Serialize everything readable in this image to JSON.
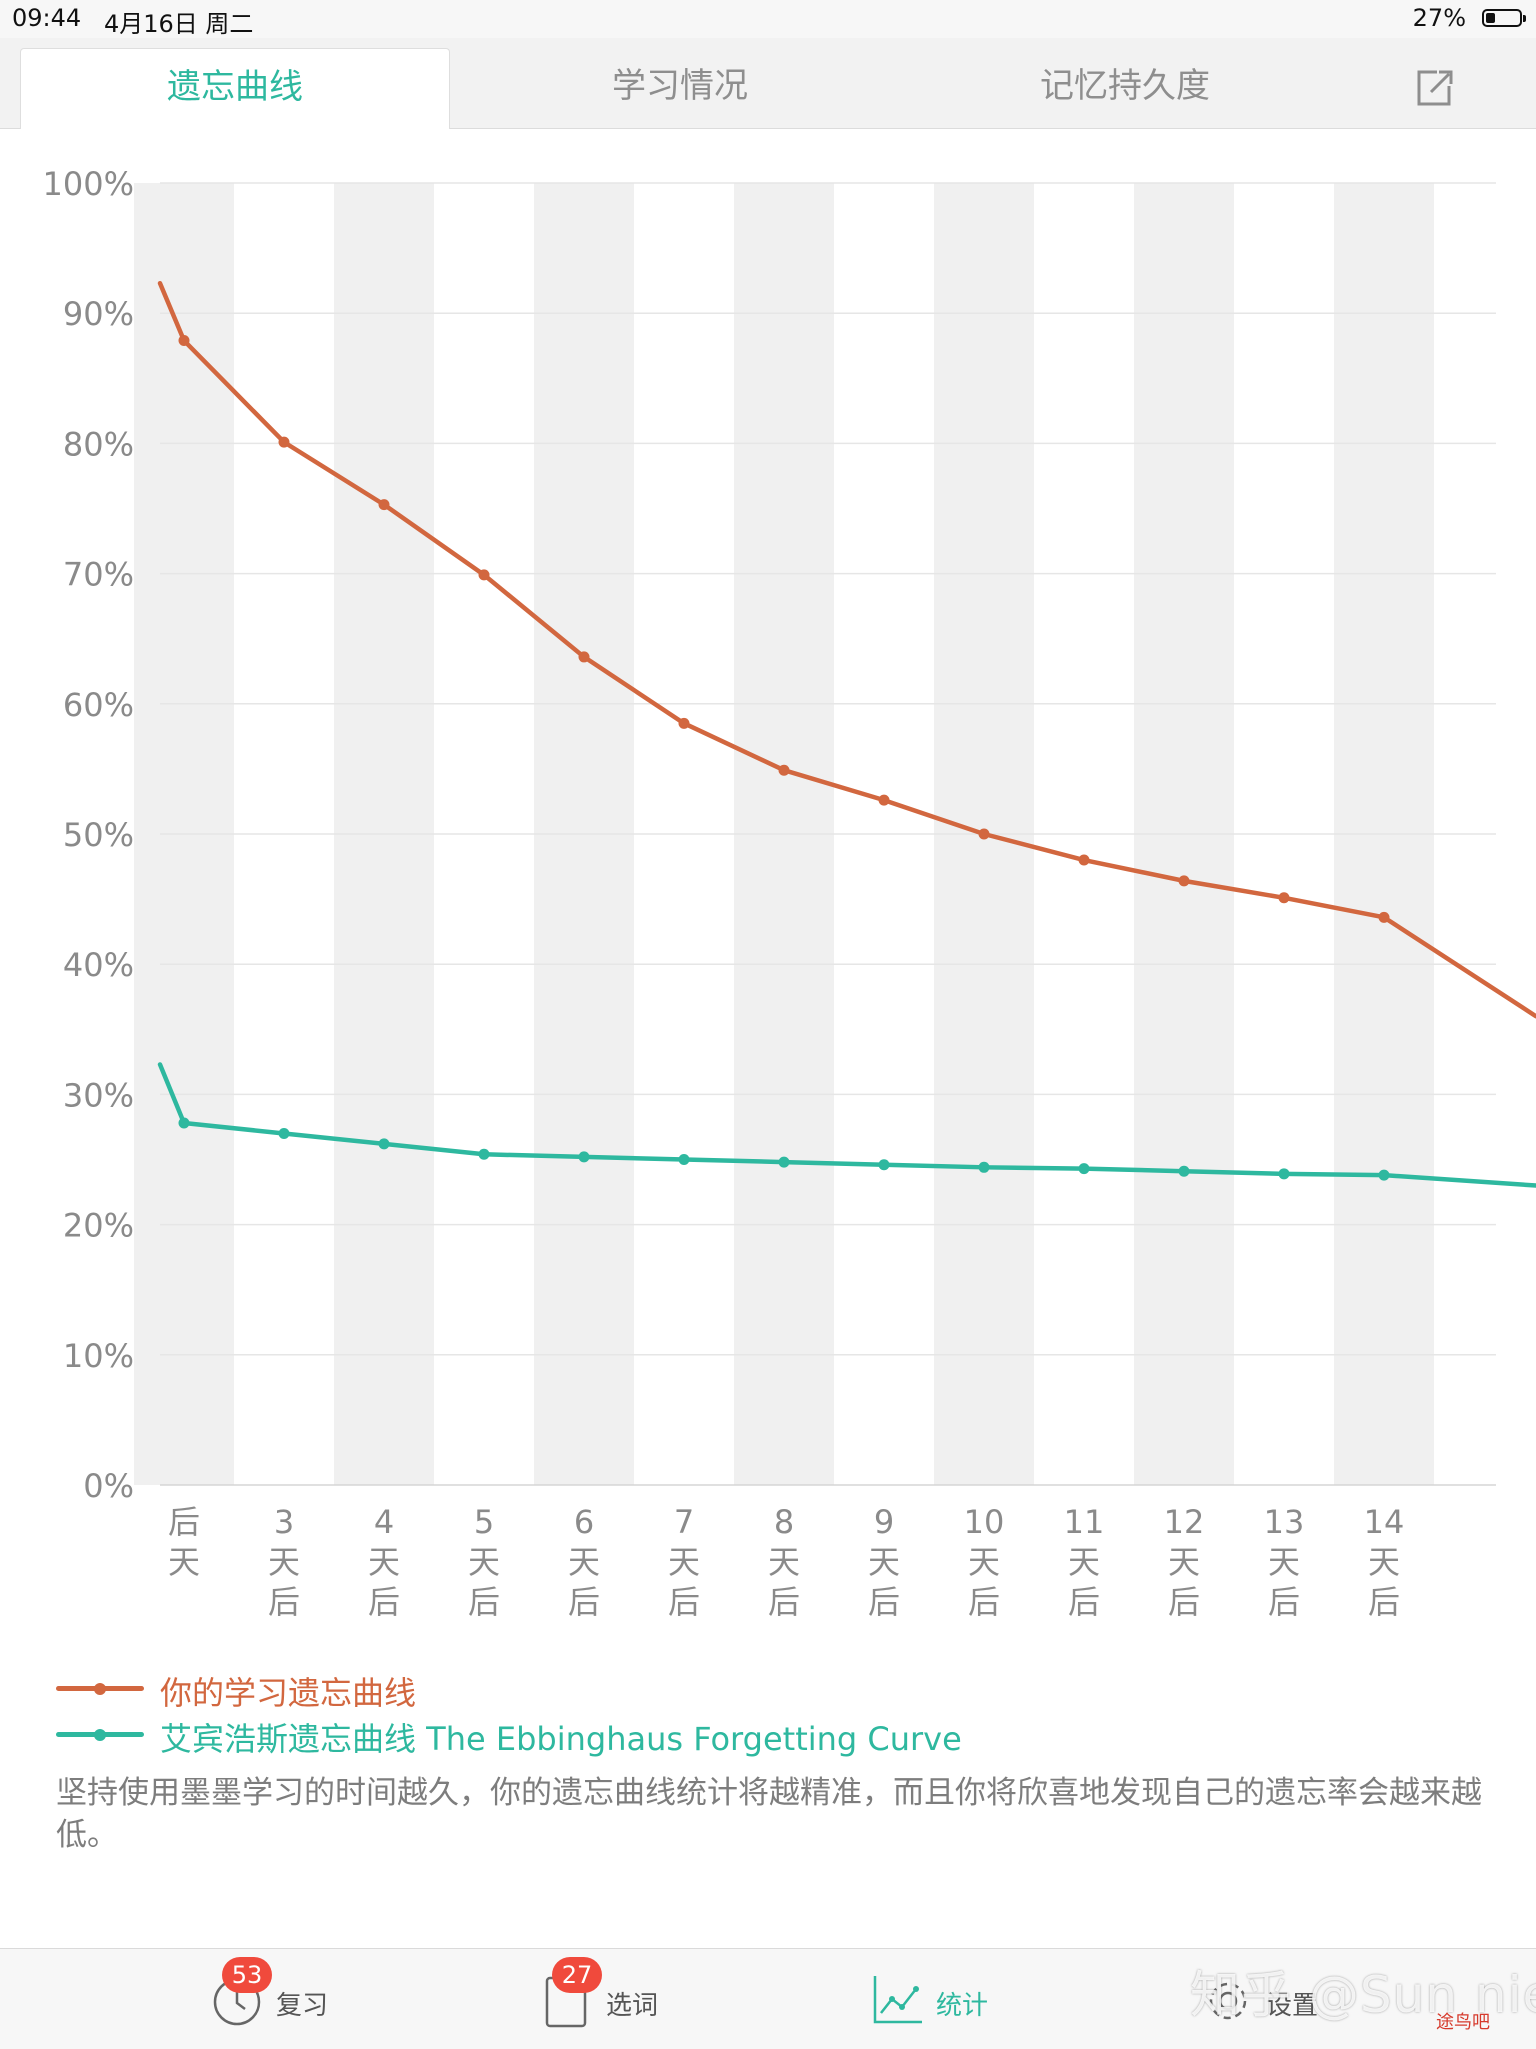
{
  "status_bar": {
    "time": "09:44",
    "date": "4月16日 周二",
    "battery": "27%"
  },
  "tabs": [
    {
      "label": "遗忘曲线",
      "active": true
    },
    {
      "label": "学习情况",
      "active": false
    },
    {
      "label": "记忆持久度",
      "active": false
    }
  ],
  "chart_data": {
    "type": "line",
    "y_unit": "%",
    "ylim": [
      0,
      100
    ],
    "y_ticks": [
      "100%",
      "90%",
      "80%",
      "70%",
      "60%",
      "50%",
      "40%",
      "30%",
      "20%",
      "10%",
      "0%"
    ],
    "categories": [
      [
        "后",
        "天"
      ],
      [
        "3",
        "天",
        "后"
      ],
      [
        "4",
        "天",
        "后"
      ],
      [
        "5",
        "天",
        "后"
      ],
      [
        "6",
        "天",
        "后"
      ],
      [
        "7",
        "天",
        "后"
      ],
      [
        "8",
        "天",
        "后"
      ],
      [
        "9",
        "天",
        "后"
      ],
      [
        "10",
        "天",
        "后"
      ],
      [
        "11",
        "天",
        "后"
      ],
      [
        "12",
        "天",
        "后"
      ],
      [
        "13",
        "天",
        "后"
      ],
      [
        "14",
        "天",
        "后"
      ]
    ],
    "grid": true,
    "series": [
      {
        "name": "你的学习遗忘曲线",
        "color": "#d2673f",
        "start_value": 92.3,
        "values": [
          87.9,
          80.1,
          75.3,
          69.9,
          63.6,
          58.5,
          54.9,
          52.6,
          50.0,
          48.0,
          46.4,
          45.1,
          43.6
        ],
        "end_value": 36.0
      },
      {
        "name": "艾宾浩斯遗忘曲线 The Ebbinghaus Forgetting Curve",
        "color": "#2eb89f",
        "start_value": 32.3,
        "values": [
          27.8,
          27.0,
          26.2,
          25.4,
          25.2,
          25.0,
          24.8,
          24.6,
          24.4,
          24.3,
          24.1,
          23.9,
          23.8
        ],
        "end_value": 23.0
      }
    ]
  },
  "description": "坚持使用墨墨学习的时间越久，你的遗忘曲线统计将越精准，而且你将欣喜地发现自己的遗忘率会越来越低。",
  "bottom_nav": [
    {
      "label": "复习",
      "badge": "53",
      "icon": "review-clock-icon"
    },
    {
      "label": "选词",
      "badge": "27",
      "icon": "notebook-icon"
    },
    {
      "label": "统计",
      "active": true,
      "icon": "line-chart-icon"
    },
    {
      "label": "设置",
      "icon": "gear-icon"
    }
  ],
  "watermark": "知乎 @Sun nie",
  "corner_logo": "途鸟吧"
}
